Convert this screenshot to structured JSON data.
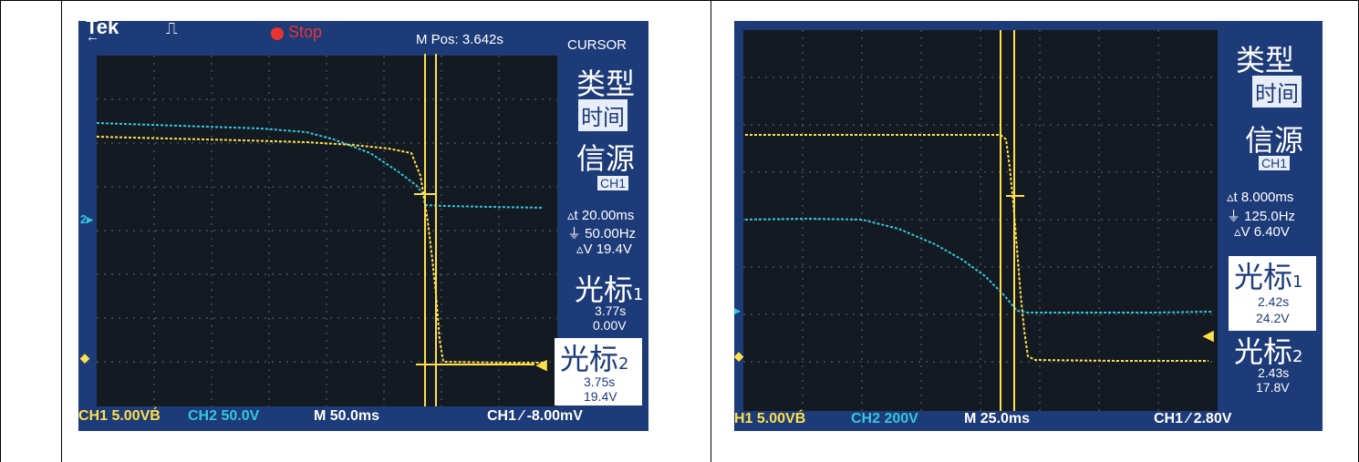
{
  "left": {
    "header": {
      "brand": "Tek",
      "status": "Stop",
      "mpos": "M Pos: 3.642s"
    },
    "menu": {
      "title": "CURSOR",
      "type_label": "类型",
      "type_value": "时间",
      "source_label": "信源",
      "source_value": "CH1",
      "dt": "▵t 20.00ms",
      "freq": "50.00Hz",
      "dv": "▵V 19.4V",
      "cursor1_label": "光标",
      "cursor1_index": "1",
      "cursor1_time": "3.77s",
      "cursor1_volt": "0.00V",
      "cursor2_label": "光标",
      "cursor2_index": "2",
      "cursor2_time": "3.75s",
      "cursor2_volt": "19.4V"
    },
    "footer": {
      "ch1": "CH1  5.00VB́",
      "ch2": "CH2  50.0V",
      "time": "M 50.0ms",
      "trig": "CH1 ∕ -8.00mV"
    }
  },
  "right": {
    "menu": {
      "type_label": "类型",
      "type_value": "时间",
      "source_label": "信源",
      "source_value": "CH1",
      "dt": "▵t 8.000ms",
      "freq": "125.0Hz",
      "dv": "▵V 6.40V",
      "cursor1_label": "光标",
      "cursor1_index": "1",
      "cursor1_time": "2.42s",
      "cursor1_volt": "24.2V",
      "cursor2_label": "光标",
      "cursor2_index": "2",
      "cursor2_time": "2.43s",
      "cursor2_volt": "17.8V"
    },
    "footer": {
      "ch1": "H1  5.00VB́",
      "ch2": "CH2  200V",
      "time": "M 25.0ms",
      "trig": "CH1 ∕ 2.80V"
    }
  },
  "colors": {
    "screen_bg": "#1d3b78",
    "grid_bg": "#141a22",
    "ch1": "#ffe04a",
    "ch2": "#33c7e0"
  }
}
